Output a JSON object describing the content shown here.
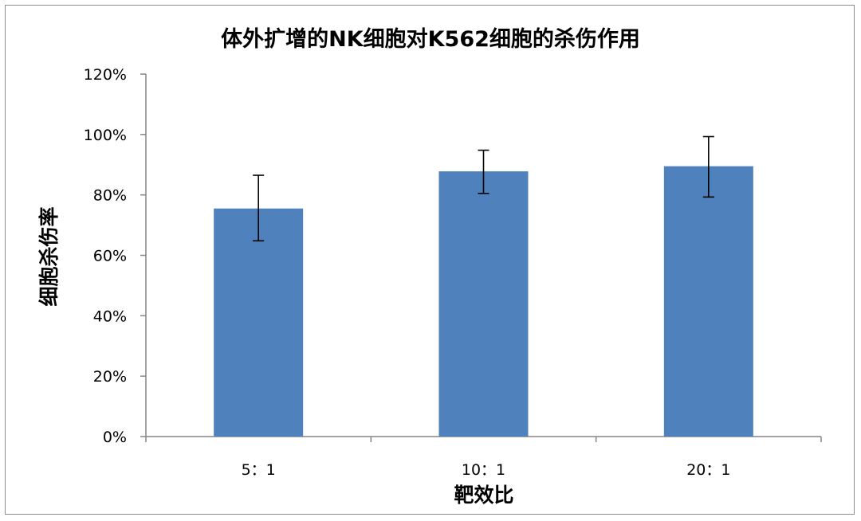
{
  "chart_data": {
    "type": "bar",
    "title": "体外扩增的NK细胞对K562细胞的杀伤作用",
    "xlabel": "靶效比",
    "ylabel": "细胞杀伤率",
    "categories": [
      "5：1",
      "10：1",
      "20：1"
    ],
    "values": [
      0.755,
      0.878,
      0.895
    ],
    "error_bars": [
      {
        "low": 0.648,
        "high": 0.865
      },
      {
        "low": 0.805,
        "high": 0.948
      },
      {
        "low": 0.793,
        "high": 0.993
      }
    ],
    "ylim": [
      0,
      1.2
    ],
    "yticks": [
      "0%",
      "20%",
      "40%",
      "60%",
      "80%",
      "100%",
      "120%"
    ],
    "ytick_values": [
      0,
      0.2,
      0.4,
      0.6,
      0.8,
      1.0,
      1.2
    ],
    "grid": false,
    "legend": "none",
    "colors": {
      "bar": "#4f81bd",
      "axis": "#868686",
      "error": "#000000"
    }
  }
}
